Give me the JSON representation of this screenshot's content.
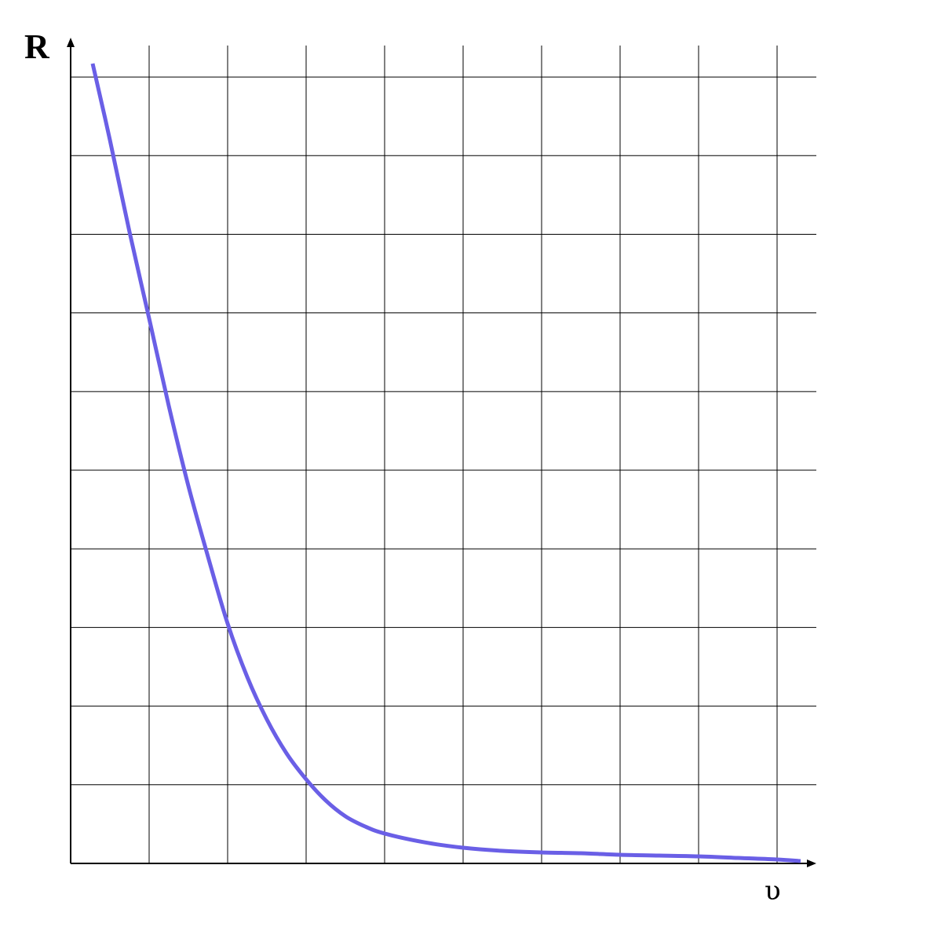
{
  "chart_data": {
    "type": "line",
    "xlabel": "υ",
    "ylabel": "R",
    "xlim": [
      0,
      9.5
    ],
    "ylim": [
      0,
      10.4
    ],
    "grid": true,
    "x_ticks": [
      0,
      1,
      2,
      3,
      4,
      5,
      6,
      7,
      8,
      9
    ],
    "y_ticks": [
      0,
      1,
      2,
      3,
      4,
      5,
      6,
      7,
      8,
      9,
      10
    ],
    "tick_labels_shown": false,
    "series": [
      {
        "color": "#6a5fe6",
        "x": [
          0.28,
          0.5,
          0.75,
          1.0,
          1.25,
          1.5,
          1.75,
          2.0,
          2.25,
          2.5,
          2.75,
          3.0,
          3.25,
          3.5,
          3.75,
          4.0,
          4.5,
          5.0,
          5.5,
          6.0,
          6.5,
          7.0,
          7.5,
          8.0,
          8.5,
          9.0,
          9.3
        ],
        "y": [
          10.17,
          9.2,
          8.03,
          6.93,
          5.82,
          4.8,
          3.9,
          3.05,
          2.37,
          1.83,
          1.4,
          1.07,
          0.8,
          0.6,
          0.47,
          0.38,
          0.27,
          0.2,
          0.16,
          0.14,
          0.13,
          0.11,
          0.1,
          0.09,
          0.07,
          0.05,
          0.03
        ]
      }
    ]
  }
}
